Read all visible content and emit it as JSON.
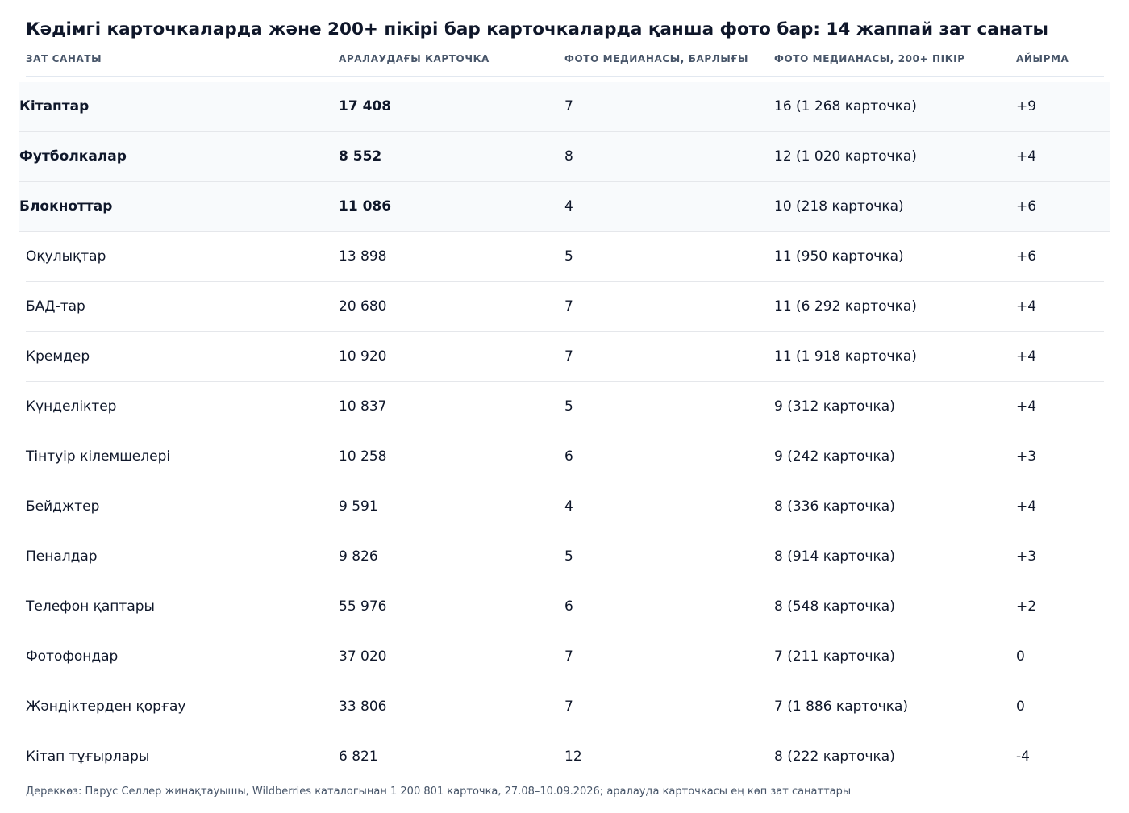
{
  "chart_data": {
    "type": "table",
    "title": "Кәдімгі карточкаларда және 200+ пікірі бар карточкаларда қанша фото бар: 14 жаппай зат санаты",
    "columns": [
      "ЗАТ САНАТЫ",
      "АРАЛАУДАҒЫ КАРТОЧКА",
      "ФОТО МЕДИАНАСЫ, БАРЛЫҒЫ",
      "ФОТО МЕДИАНАСЫ, 200+ ПІКІР",
      "АЙЫРМА"
    ],
    "rows": [
      {
        "category": "Кітаптар",
        "cards": "17 408",
        "median_all": "7",
        "median_200": "16 (1 268 карточка)",
        "diff": "+9",
        "highlight": true
      },
      {
        "category": "Футболкалар",
        "cards": "8 552",
        "median_all": "8",
        "median_200": "12 (1 020 карточка)",
        "diff": "+4",
        "highlight": true
      },
      {
        "category": "Блокноттар",
        "cards": "11 086",
        "median_all": "4",
        "median_200": "10 (218 карточка)",
        "diff": "+6",
        "highlight": true
      },
      {
        "category": "Оқулықтар",
        "cards": "13 898",
        "median_all": "5",
        "median_200": "11 (950 карточка)",
        "diff": "+6",
        "highlight": false
      },
      {
        "category": "БАД-тар",
        "cards": "20 680",
        "median_all": "7",
        "median_200": "11 (6 292 карточка)",
        "diff": "+4",
        "highlight": false
      },
      {
        "category": "Кремдер",
        "cards": "10 920",
        "median_all": "7",
        "median_200": "11 (1 918 карточка)",
        "diff": "+4",
        "highlight": false
      },
      {
        "category": "Күнделіктер",
        "cards": "10 837",
        "median_all": "5",
        "median_200": "9 (312 карточка)",
        "diff": "+4",
        "highlight": false
      },
      {
        "category": "Тінтуір кілемшелері",
        "cards": "10 258",
        "median_all": "6",
        "median_200": "9 (242 карточка)",
        "diff": "+3",
        "highlight": false
      },
      {
        "category": "Бейджтер",
        "cards": "9 591",
        "median_all": "4",
        "median_200": "8 (336 карточка)",
        "diff": "+4",
        "highlight": false
      },
      {
        "category": "Пеналдар",
        "cards": "9 826",
        "median_all": "5",
        "median_200": "8 (914 карточка)",
        "diff": "+3",
        "highlight": false
      },
      {
        "category": "Телефон қаптары",
        "cards": "55 976",
        "median_all": "6",
        "median_200": "8 (548 карточка)",
        "diff": "+2",
        "highlight": false
      },
      {
        "category": "Фотофондар",
        "cards": "37 020",
        "median_all": "7",
        "median_200": "7 (211 карточка)",
        "diff": "0",
        "highlight": false
      },
      {
        "category": "Жәндіктерден қорғау",
        "cards": "33 806",
        "median_all": "7",
        "median_200": "7 (1 886 карточка)",
        "diff": "0",
        "highlight": false
      },
      {
        "category": "Кітап тұғырлары",
        "cards": "6 821",
        "median_all": "12",
        "median_200": "8 (222 карточка)",
        "diff": "-4",
        "highlight": false
      }
    ],
    "source": "Дереккөз: Парус Селлер жинақтауышы, Wildberries каталогынан 1 200 801 карточка, 27.08–10.09.2026; аралауда карточкасы ең көп зат санаттары"
  }
}
